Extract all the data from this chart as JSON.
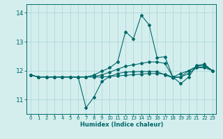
{
  "xlabel": "Humidex (Indice chaleur)",
  "bg_color": "#d4eeee",
  "grid_color": "#b0d8d8",
  "line_color": "#006868",
  "xlim": [
    -0.5,
    23.5
  ],
  "ylim": [
    10.5,
    14.3
  ],
  "yticks": [
    11,
    12,
    13,
    14
  ],
  "xticks": [
    0,
    1,
    2,
    3,
    4,
    5,
    6,
    7,
    8,
    9,
    10,
    11,
    12,
    13,
    14,
    15,
    16,
    17,
    18,
    19,
    20,
    21,
    22,
    23
  ],
  "series": [
    [
      11.85,
      11.78,
      11.78,
      11.78,
      11.78,
      11.78,
      11.78,
      11.78,
      11.78,
      11.78,
      11.8,
      11.82,
      11.84,
      11.86,
      11.88,
      11.9,
      11.9,
      11.88,
      11.78,
      11.9,
      12.0,
      12.1,
      12.1,
      12.0
    ],
    [
      11.85,
      11.78,
      11.78,
      11.78,
      11.78,
      11.78,
      11.78,
      11.78,
      11.8,
      11.85,
      11.95,
      12.05,
      12.15,
      12.2,
      12.25,
      12.3,
      12.3,
      12.25,
      11.78,
      11.78,
      12.0,
      12.15,
      12.2,
      12.0
    ],
    [
      11.85,
      11.78,
      11.78,
      11.78,
      11.78,
      11.78,
      11.78,
      10.72,
      11.08,
      11.62,
      11.8,
      11.9,
      11.95,
      11.96,
      11.97,
      11.97,
      11.97,
      11.85,
      11.75,
      11.78,
      11.9,
      12.1,
      12.15,
      12.0
    ],
    [
      11.85,
      11.78,
      11.78,
      11.78,
      11.78,
      11.78,
      11.78,
      11.78,
      11.85,
      11.98,
      12.1,
      12.3,
      13.35,
      13.1,
      13.92,
      13.58,
      12.45,
      12.48,
      11.78,
      11.55,
      11.78,
      12.18,
      12.22,
      12.0
    ]
  ]
}
